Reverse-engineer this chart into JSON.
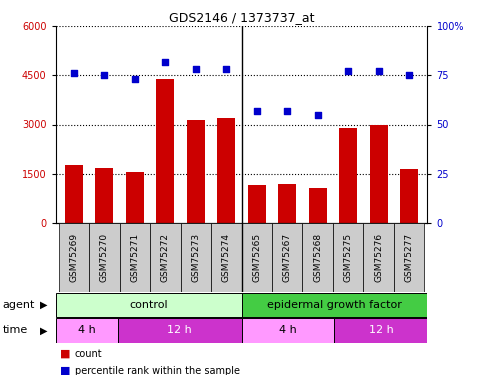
{
  "title": "GDS2146 / 1373737_at",
  "samples": [
    "GSM75269",
    "GSM75270",
    "GSM75271",
    "GSM75272",
    "GSM75273",
    "GSM75274",
    "GSM75265",
    "GSM75267",
    "GSM75268",
    "GSM75275",
    "GSM75276",
    "GSM75277"
  ],
  "counts": [
    1750,
    1680,
    1560,
    4400,
    3150,
    3200,
    1150,
    1180,
    1050,
    2900,
    3000,
    1650
  ],
  "percentiles": [
    76,
    75,
    73,
    82,
    78,
    78,
    57,
    57,
    55,
    77,
    77,
    75
  ],
  "ylim_left": [
    0,
    6000
  ],
  "ylim_right": [
    0,
    100
  ],
  "yticks_left": [
    0,
    1500,
    3000,
    4500,
    6000
  ],
  "yticks_right": [
    0,
    25,
    50,
    75,
    100
  ],
  "bar_color": "#cc0000",
  "dot_color": "#0000cc",
  "agent_control_color": "#ccffcc",
  "agent_egf_color": "#44cc44",
  "time_4h_color": "#ff99ff",
  "time_12h_color": "#cc33cc",
  "sample_bg_color": "#cccccc",
  "time_4h_ctrl_count": 2,
  "time_12h_ctrl_count": 4,
  "time_4h_egf_count": 3,
  "time_12h_egf_count": 3,
  "n_control": 6,
  "n_egf": 6
}
